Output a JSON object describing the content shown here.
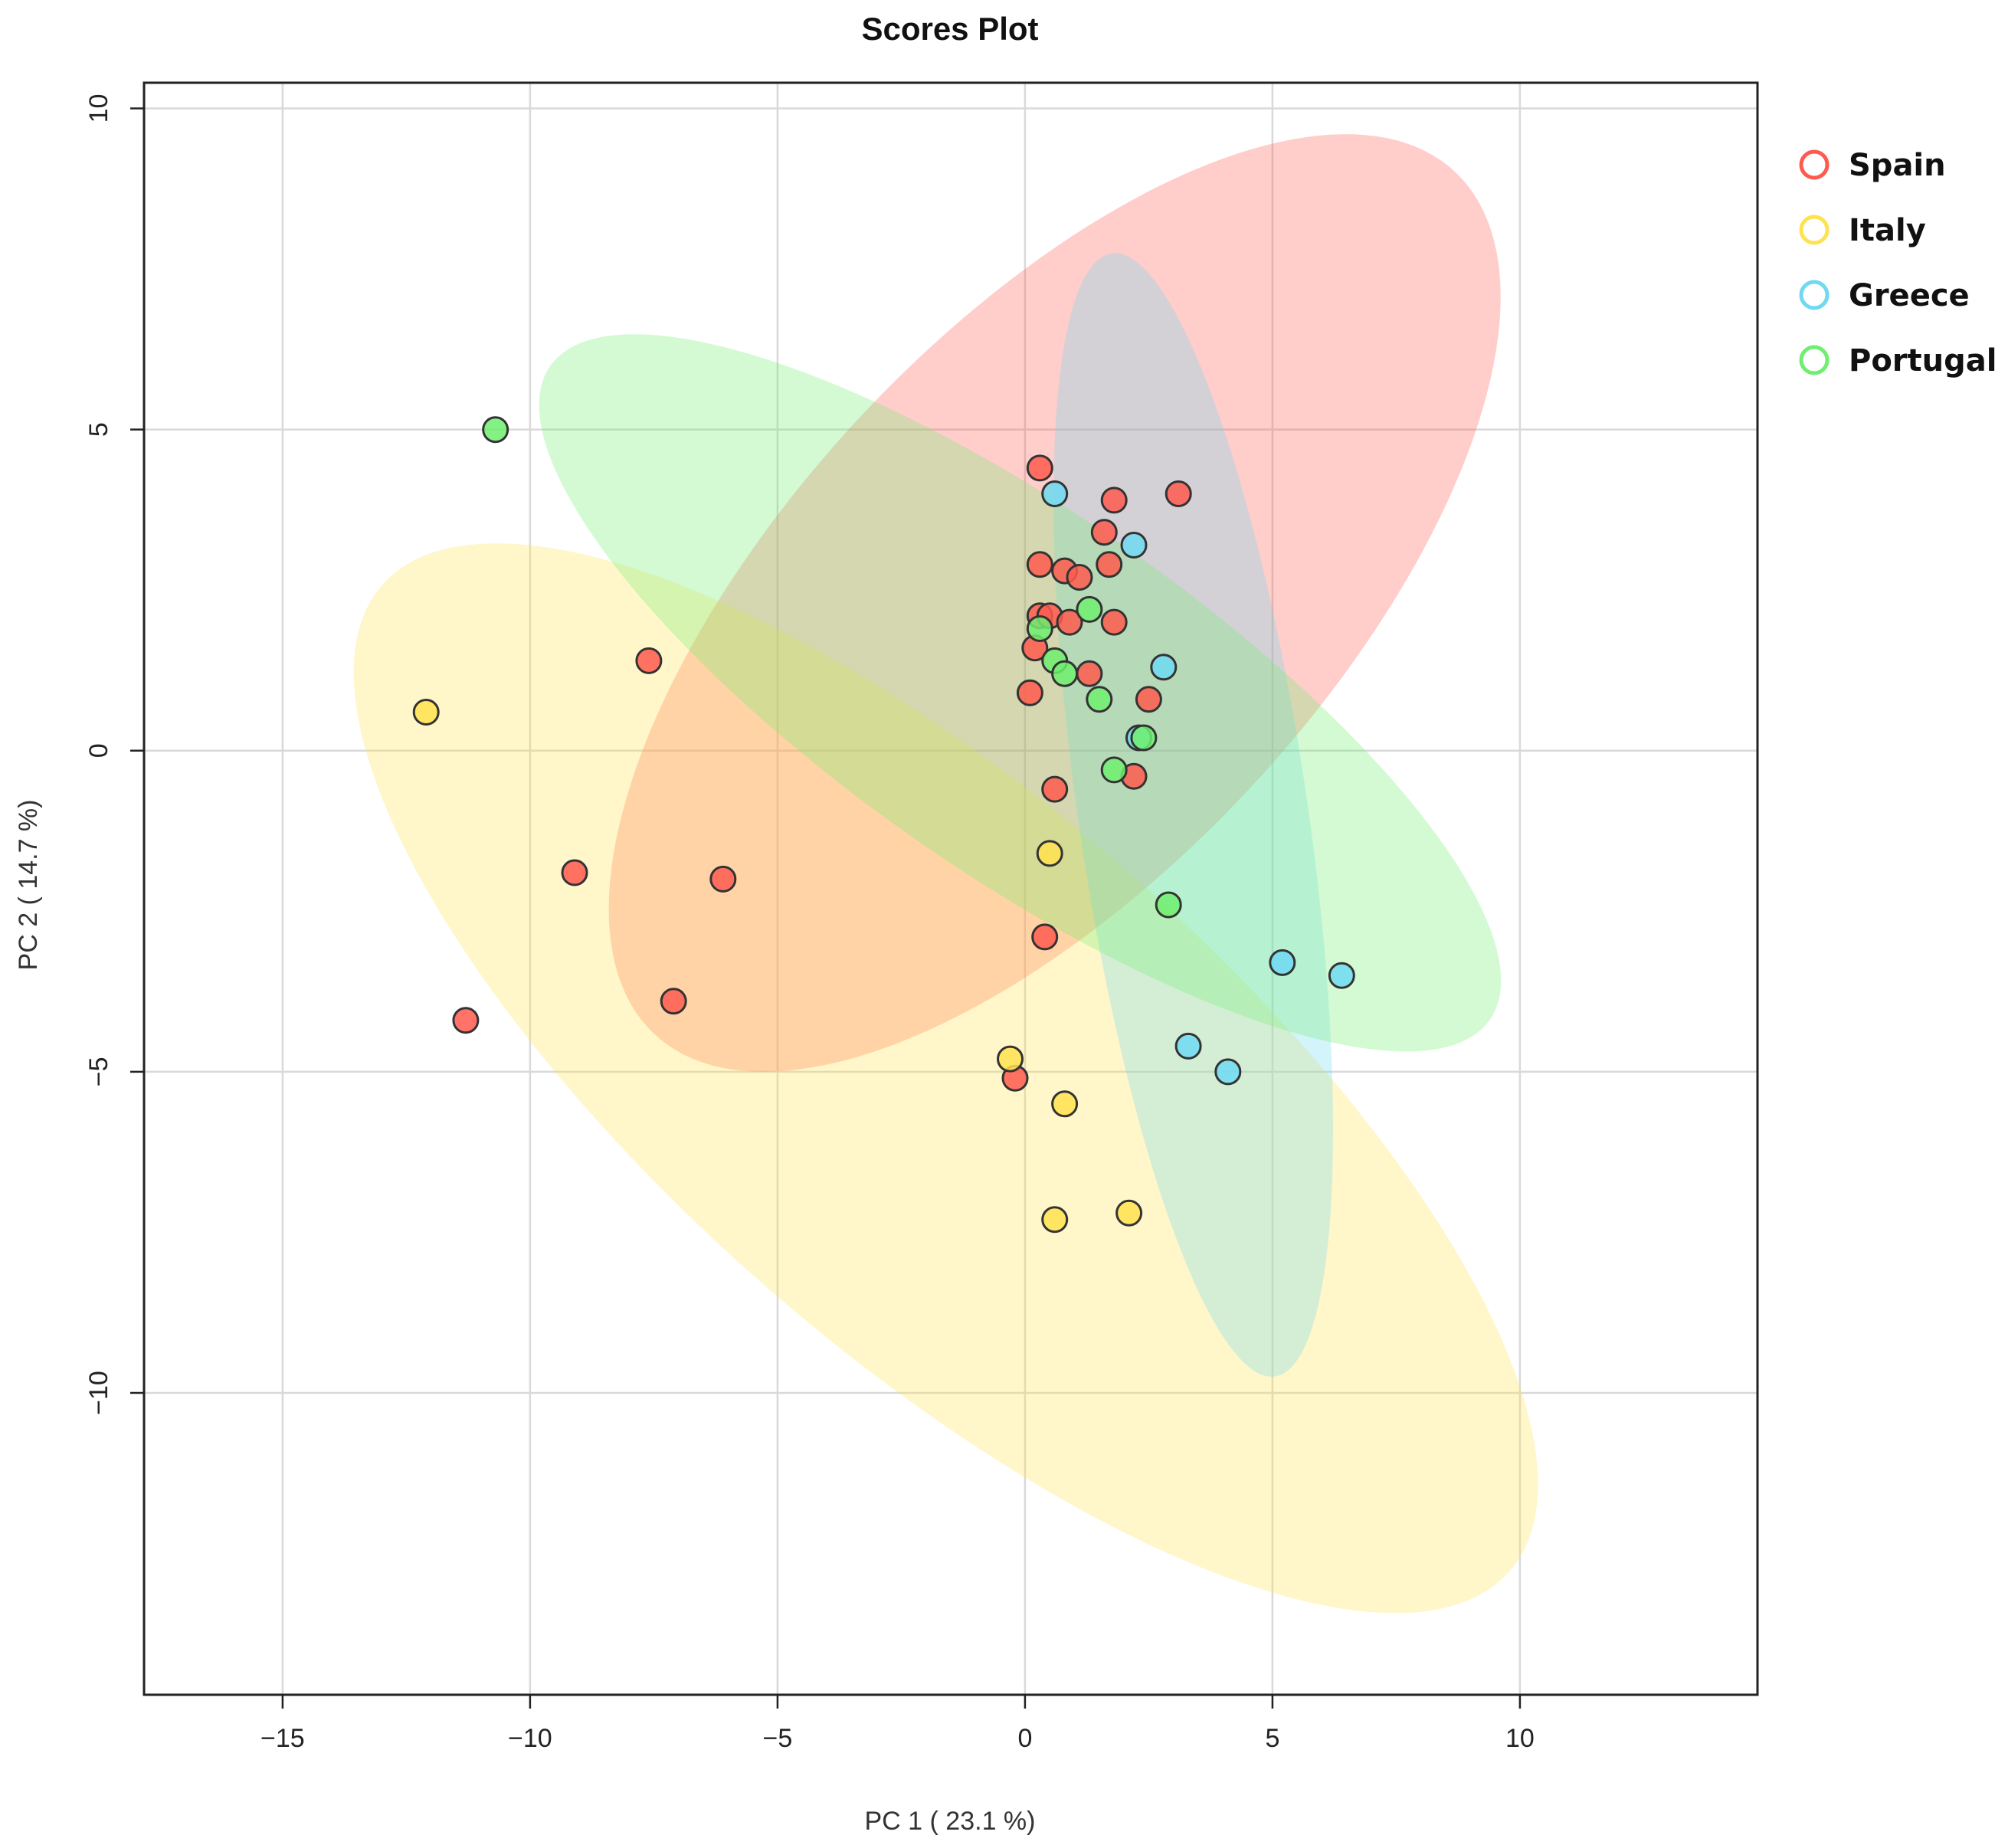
{
  "chart_data": {
    "type": "scatter",
    "title": "Scores Plot",
    "xlabel": "PC 1 ( 23.1 %)",
    "ylabel": "PC 2 ( 14.7 %)",
    "xlim": [
      -17.8,
      14.8
    ],
    "ylim": [
      -14.7,
      10.4
    ],
    "x_ticks": [
      -15,
      -10,
      -5,
      0,
      5,
      10
    ],
    "x_tick_labels": [
      "−15",
      "−10",
      "−5",
      "0",
      "5",
      "10"
    ],
    "y_ticks": [
      -10,
      -5,
      0,
      5,
      10
    ],
    "y_tick_labels": [
      "−10",
      "−5",
      "0",
      "5",
      "10"
    ],
    "grid": true,
    "legend_position": "right",
    "series": [
      {
        "name": "Spain",
        "color": "#ff5a4f",
        "ellipse": {
          "center": [
            0.6,
            2.3
          ],
          "half_axis_major": 10.6,
          "half_axis_minor": 4.7,
          "angle_deg": 36
        },
        "points": [
          [
            0.3,
            4.4
          ],
          [
            1.8,
            3.9
          ],
          [
            3.1,
            4.0
          ],
          [
            1.6,
            3.4
          ],
          [
            1.7,
            2.9
          ],
          [
            0.3,
            2.9
          ],
          [
            0.8,
            2.8
          ],
          [
            1.1,
            2.7
          ],
          [
            0.3,
            2.1
          ],
          [
            0.5,
            2.1
          ],
          [
            0.9,
            2.0
          ],
          [
            1.8,
            2.0
          ],
          [
            0.2,
            1.6
          ],
          [
            1.3,
            1.2
          ],
          [
            0.1,
            0.9
          ],
          [
            2.5,
            0.8
          ],
          [
            2.2,
            -0.4
          ],
          [
            0.6,
            -0.6
          ],
          [
            0.4,
            -2.9
          ],
          [
            -0.2,
            -5.1
          ],
          [
            -7.6,
            1.4
          ],
          [
            -9.1,
            -1.9
          ],
          [
            -6.1,
            -2.0
          ],
          [
            -7.1,
            -3.9
          ],
          [
            -11.3,
            -4.2
          ]
        ]
      },
      {
        "name": "Italy",
        "color": "#ffe24f",
        "ellipse": {
          "center": [
            -1.6,
            -5.1
          ],
          "half_axis_major": 13.8,
          "half_axis_minor": 4.7,
          "angle_deg": -32
        },
        "points": [
          [
            -12.1,
            0.6
          ],
          [
            0.5,
            -1.6
          ],
          [
            -0.3,
            -4.8
          ],
          [
            0.8,
            -5.5
          ],
          [
            0.6,
            -7.3
          ],
          [
            2.1,
            -7.2
          ]
        ]
      },
      {
        "name": "Greece",
        "color": "#6fd9f2",
        "ellipse": {
          "center": [
            3.4,
            -1.0
          ],
          "half_axis_major": 8.9,
          "half_axis_minor": 2.3,
          "angle_deg": -79
        },
        "points": [
          [
            0.6,
            4.0
          ],
          [
            2.2,
            3.2
          ],
          [
            2.8,
            1.3
          ],
          [
            2.3,
            0.2
          ],
          [
            5.2,
            -3.3
          ],
          [
            6.4,
            -3.5
          ],
          [
            3.3,
            -4.6
          ],
          [
            4.1,
            -5.0
          ]
        ]
      },
      {
        "name": "Portugal",
        "color": "#6fee6f",
        "ellipse": {
          "center": [
            -0.1,
            0.9
          ],
          "half_axis_major": 10.8,
          "half_axis_minor": 3.0,
          "angle_deg": -27
        },
        "points": [
          [
            -10.7,
            5.0
          ],
          [
            1.3,
            2.2
          ],
          [
            0.3,
            1.9
          ],
          [
            0.6,
            1.4
          ],
          [
            0.8,
            1.2
          ],
          [
            1.5,
            0.8
          ],
          [
            2.4,
            0.2
          ],
          [
            1.8,
            -0.3
          ],
          [
            2.9,
            -2.4
          ]
        ]
      }
    ]
  }
}
